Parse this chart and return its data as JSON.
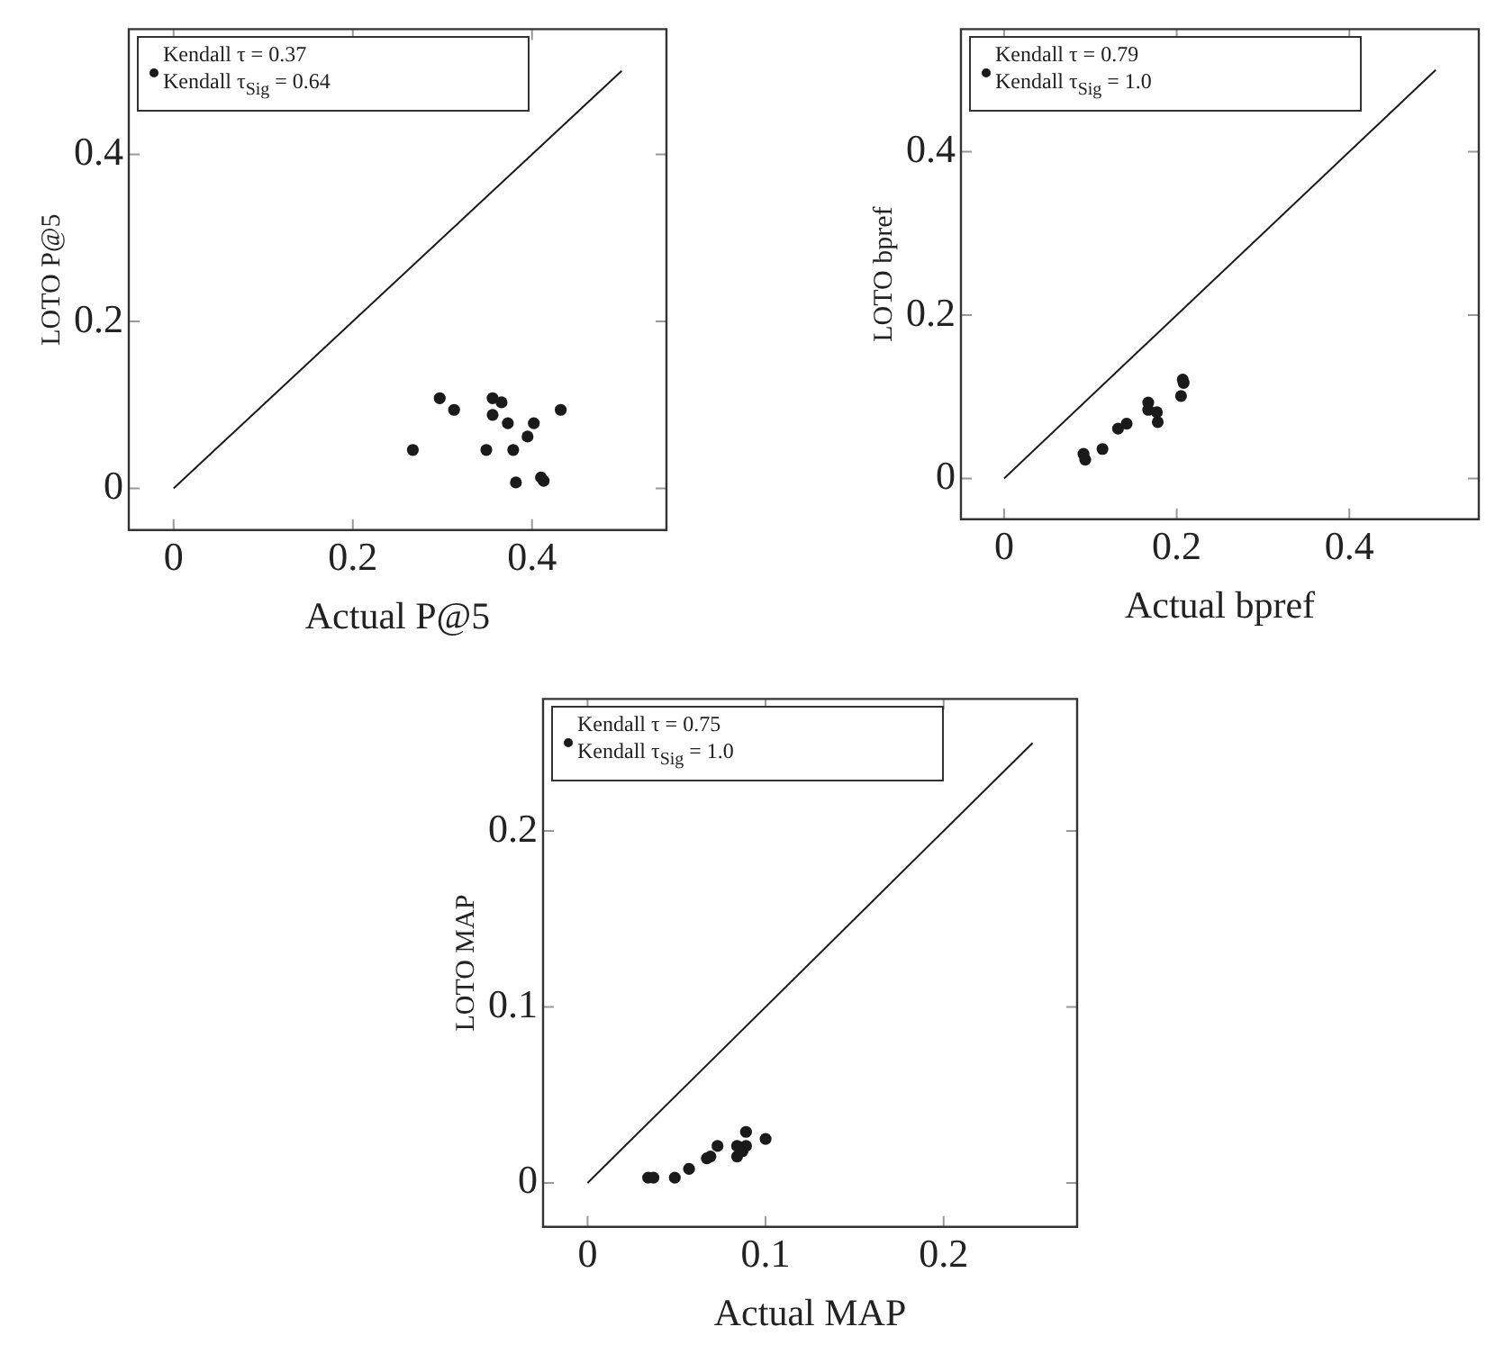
{
  "chart_data": [
    {
      "type": "scatter",
      "xlabel": "Actual P@5",
      "ylabel": "LOTO P@5",
      "xlim": [
        -0.05,
        0.55
      ],
      "ylim": [
        -0.05,
        0.55
      ],
      "xticks": [
        0,
        0.2,
        0.4
      ],
      "yticks": [
        0,
        0.2,
        0.4
      ],
      "grid": false,
      "legend": "top left",
      "marker": "circle",
      "series": [
        {
          "name": "Kendall τ = 0.37\nKendall τ$_{Sig}$ = 0.64",
          "color": "#1a1a1a",
          "x": [
            0.267,
            0.297,
            0.313,
            0.356,
            0.366,
            0.356,
            0.373,
            0.349,
            0.379,
            0.395,
            0.402,
            0.432,
            0.382,
            0.41,
            0.413
          ],
          "values": [
            0.046,
            0.108,
            0.094,
            0.108,
            0.103,
            0.088,
            0.078,
            0.046,
            0.046,
            0.062,
            0.078,
            0.094,
            0.007,
            0.013,
            0.009
          ]
        },
        {
          "type": "line",
          "color": "#1a1a1a",
          "marker": "none",
          "x": [
            0,
            0.5
          ],
          "values": [
            0,
            0.5
          ]
        }
      ]
    },
    {
      "type": "scatter",
      "xlabel": "Actual bpref",
      "ylabel": "LOTO bpref",
      "xlim": [
        -0.05,
        0.55
      ],
      "ylim": [
        -0.05,
        0.55
      ],
      "xticks": [
        0,
        0.2,
        0.4
      ],
      "yticks": [
        0,
        0.2,
        0.4
      ],
      "grid": false,
      "legend": "top left",
      "marker": "circle",
      "series": [
        {
          "name": "Kendall τ = 0.79\nKendall τ$_{Sig}$ = 1.0",
          "color": "#1a1a1a",
          "x": [
            0.092,
            0.094,
            0.114,
            0.132,
            0.142,
            0.167,
            0.167,
            0.177,
            0.178,
            0.205,
            0.207,
            0.208
          ],
          "values": [
            0.03,
            0.023,
            0.036,
            0.061,
            0.067,
            0.093,
            0.084,
            0.081,
            0.069,
            0.101,
            0.121,
            0.117
          ]
        },
        {
          "type": "line",
          "color": "#1a1a1a",
          "marker": "none",
          "x": [
            0,
            0.5
          ],
          "values": [
            0,
            0.5
          ]
        }
      ]
    },
    {
      "type": "scatter",
      "xlabel": "Actual MAP",
      "ylabel": "LOTO MAP",
      "xlim": [
        -0.025,
        0.275
      ],
      "ylim": [
        -0.025,
        0.275
      ],
      "xticks": [
        0,
        0.1,
        0.2
      ],
      "yticks": [
        0,
        0.1,
        0.2
      ],
      "grid": false,
      "legend": "top left",
      "marker": "circle",
      "series": [
        {
          "name": "Kendall τ = 0.75\nKendall τ$_{Sig}$ = 1.0",
          "color": "#1a1a1a",
          "x": [
            0.034,
            0.037,
            0.049,
            0.057,
            0.067,
            0.069,
            0.073,
            0.084,
            0.084,
            0.087,
            0.089,
            0.089,
            0.1
          ],
          "values": [
            0.003,
            0.003,
            0.003,
            0.008,
            0.014,
            0.015,
            0.021,
            0.015,
            0.021,
            0.018,
            0.021,
            0.029,
            0.025
          ]
        },
        {
          "type": "line",
          "color": "#1a1a1a",
          "marker": "none",
          "x": [
            0,
            0.25
          ],
          "values": [
            0,
            0.25
          ]
        }
      ]
    }
  ]
}
